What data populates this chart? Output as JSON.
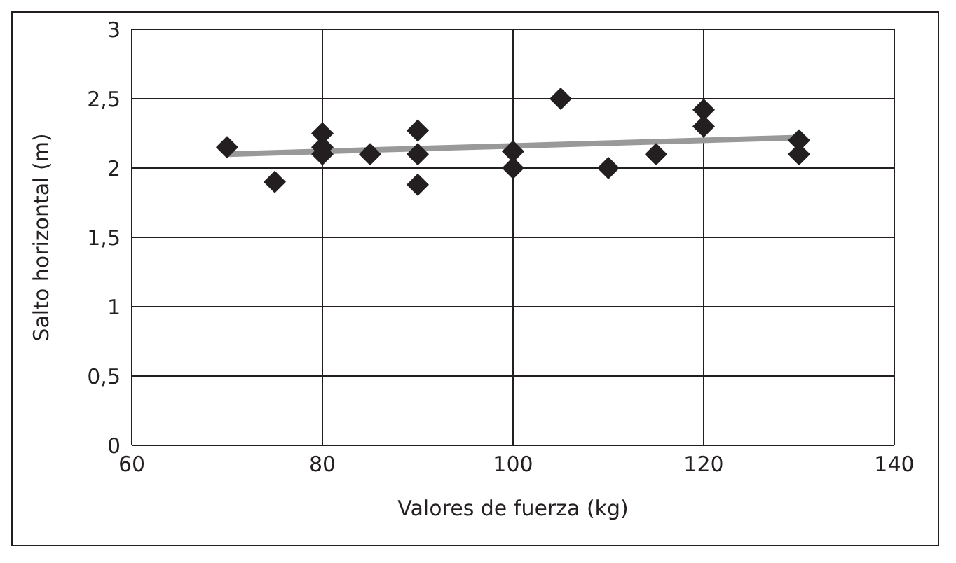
{
  "chart_data": {
    "type": "scatter",
    "xlabel": "Valores de fuerza (kg)",
    "ylabel": "Salto horizontal (m)",
    "xlim": [
      60,
      140
    ],
    "xticks": [
      60,
      80,
      100,
      120,
      140
    ],
    "ylim": [
      0,
      3
    ],
    "yticks": [
      0,
      {
        "value": 0.5,
        "label": "0,5"
      },
      1,
      {
        "value": 1.5,
        "label": "1,5"
      },
      2,
      {
        "value": 2.5,
        "label": "2,5"
      },
      3
    ],
    "grid": true,
    "marker": "diamond",
    "series": [
      {
        "type": "scatter",
        "color": "#231f20",
        "x": [
          70,
          75,
          80,
          80,
          80,
          85,
          90,
          90,
          90,
          100,
          100,
          105,
          110,
          115,
          120,
          120,
          130,
          130
        ],
        "values": [
          2.15,
          1.9,
          2.25,
          2.15,
          2.1,
          2.1,
          2.27,
          2.1,
          1.88,
          2.12,
          2.0,
          2.5,
          2.0,
          2.1,
          2.42,
          2.3,
          2.2,
          2.1
        ]
      },
      {
        "type": "line",
        "color": "#999999",
        "marker": "none",
        "x": [
          70,
          130
        ],
        "values": [
          2.1,
          2.22
        ]
      }
    ]
  }
}
